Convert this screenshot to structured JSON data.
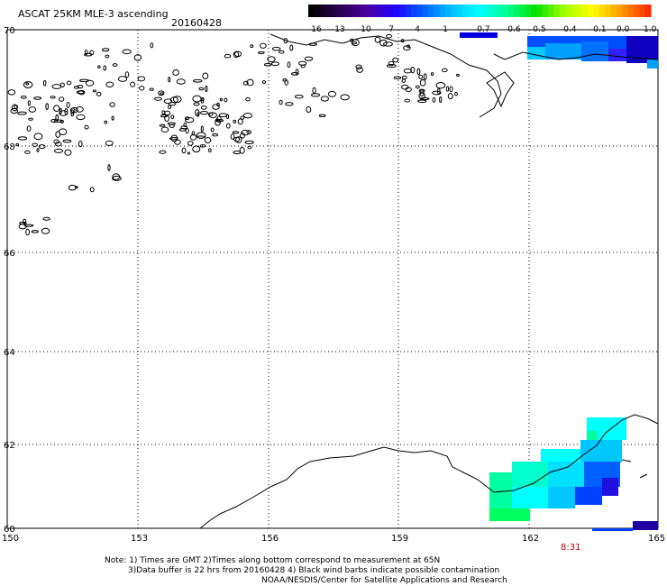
{
  "header": {
    "title": "ASCAT 25KM MLE-3 ascending",
    "date": "20160428"
  },
  "colorbar": {
    "labels": [
      "-16",
      "-13",
      "-10",
      "-7",
      "-4",
      "-1",
      "-0.7",
      "-0.6",
      "-0.5",
      "-0.4",
      "-0.1",
      "0.0",
      "1.0"
    ],
    "colors": [
      "#000000",
      "#2a0050",
      "#4800a0",
      "#2000ff",
      "#0060ff",
      "#00c0ff",
      "#00ffff",
      "#00ff90",
      "#00e000",
      "#a0ff00",
      "#ffff00",
      "#ffa000",
      "#ff3000"
    ]
  },
  "map": {
    "lat_labels": [
      "70",
      "68",
      "66",
      "64",
      "62",
      "60"
    ],
    "lon_labels": [
      "150",
      "153",
      "156",
      "159",
      "162",
      "165"
    ],
    "time_label": "8:31"
  },
  "notes": {
    "line1": "Note: 1) Times are GMT 2)Times along bottom correspond to measurement at 65N",
    "line2": "3)Data buffer is 22 hrs from 20160428 4) Black wind barbs indicate possible contamination",
    "line3": "NOAA/NESDIS/Center for Satellite Applications and Research"
  }
}
